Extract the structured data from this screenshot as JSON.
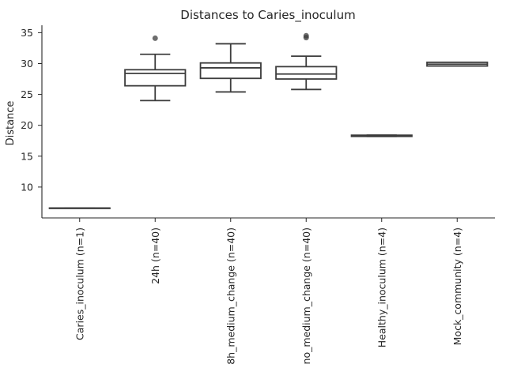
{
  "chart_data": {
    "type": "box",
    "title": "Distances to Caries_inoculum",
    "xlabel": "",
    "ylabel": "Distance",
    "ylim": [
      5.0,
      36.2
    ],
    "yticks": [
      10,
      15,
      20,
      25,
      30,
      35
    ],
    "grid": false,
    "categories": [
      "Caries_inoculum (n=1)",
      "24h (n=40)",
      "8h_medium_change (n=40)",
      "no_medium_change (n=40)",
      "Healthy_inoculum (n=4)",
      "Mock_community (n=4)"
    ],
    "boxes": [
      {
        "whislo": 6.6,
        "q1": 6.6,
        "med": 6.6,
        "q3": 6.6,
        "whishi": 6.6,
        "fliers": []
      },
      {
        "whislo": 24.0,
        "q1": 26.4,
        "med": 28.4,
        "q3": 29.0,
        "whishi": 31.5,
        "fliers": [
          34.1
        ]
      },
      {
        "whislo": 25.4,
        "q1": 27.6,
        "med": 29.3,
        "q3": 30.1,
        "whishi": 33.2,
        "fliers": []
      },
      {
        "whislo": 25.8,
        "q1": 27.5,
        "med": 28.3,
        "q3": 29.5,
        "whishi": 31.2,
        "fliers": [
          34.2,
          34.5
        ]
      },
      {
        "whislo": 18.2,
        "q1": 18.2,
        "med": 18.3,
        "q3": 18.4,
        "whishi": 18.4,
        "fliers": []
      },
      {
        "whislo": 29.6,
        "q1": 29.6,
        "med": 29.9,
        "q3": 30.2,
        "whishi": 30.2,
        "fliers": []
      }
    ]
  }
}
